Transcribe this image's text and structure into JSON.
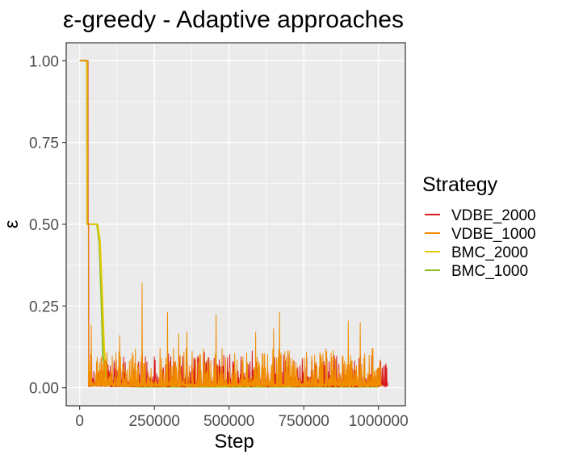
{
  "chart_data": {
    "type": "line",
    "title": "ε-greedy - Adaptive approaches",
    "xlabel": "Step",
    "ylabel": "ε",
    "xlim": [
      -45000,
      1090000
    ],
    "ylim": [
      -0.055,
      1.055
    ],
    "x_ticks": [
      0,
      250000,
      500000,
      750000,
      1000000
    ],
    "x_tick_labels": [
      "0",
      "250000",
      "500000",
      "750000",
      "1000000"
    ],
    "y_ticks": [
      0.0,
      0.25,
      0.5,
      0.75,
      1.0
    ],
    "y_tick_labels": [
      "0.00",
      "0.25",
      "0.50",
      "0.75",
      "1.00"
    ],
    "grid": true,
    "background": "#ebebeb",
    "legend": {
      "title": "Strategy",
      "position": "right"
    },
    "series": [
      {
        "name": "VDBE_2000",
        "color": "#d7191c",
        "points": [
          [
            0,
            1.0
          ],
          [
            28000,
            1.0
          ],
          [
            28500,
            0.5
          ],
          [
            30000,
            0.5
          ],
          [
            30500,
            0.003
          ]
        ],
        "noise": {
          "from": 30000,
          "to": 1030000,
          "base": 0.012,
          "typical_peak": 0.07,
          "max_peak": 0.15
        }
      },
      {
        "name": "VDBE_1000",
        "color": "#f08c00",
        "points": [
          [
            0,
            1.0
          ],
          [
            27000,
            1.0
          ],
          [
            27500,
            0.5
          ],
          [
            29000,
            0.5
          ],
          [
            29500,
            0.003
          ]
        ],
        "noise": {
          "from": 29000,
          "to": 1010000,
          "base": 0.01,
          "typical_peak": 0.08,
          "max_peak": 0.32
        },
        "spikes": [
          [
            210000,
            0.32
          ],
          [
            295000,
            0.23
          ],
          [
            670000,
            0.23
          ],
          [
            650000,
            0.18
          ],
          [
            940000,
            0.2
          ],
          [
            590000,
            0.17
          ],
          [
            360000,
            0.17
          ],
          [
            135000,
            0.16
          ],
          [
            980000,
            0.12
          ]
        ]
      },
      {
        "name": "BMC_2000",
        "color": "#e6c800",
        "points": [
          [
            0,
            1.0
          ],
          [
            25000,
            1.0
          ],
          [
            26000,
            0.5
          ],
          [
            60000,
            0.5
          ],
          [
            68000,
            0.45
          ],
          [
            75000,
            0.3
          ],
          [
            82000,
            0.12
          ],
          [
            90000,
            0.05
          ],
          [
            100000,
            0.02
          ],
          [
            130000,
            0.01
          ],
          [
            200000,
            0.005
          ],
          [
            1000000,
            0.005
          ]
        ]
      },
      {
        "name": "BMC_1000",
        "color": "#8bbf1e",
        "points": [
          [
            0,
            1.0
          ],
          [
            24000,
            1.0
          ],
          [
            25000,
            0.5
          ],
          [
            58000,
            0.5
          ],
          [
            66000,
            0.44
          ],
          [
            72000,
            0.28
          ],
          [
            78000,
            0.1
          ],
          [
            86000,
            0.04
          ],
          [
            96000,
            0.015
          ],
          [
            130000,
            0.006
          ],
          [
            200000,
            0.003
          ],
          [
            1000000,
            0.003
          ]
        ]
      }
    ]
  }
}
